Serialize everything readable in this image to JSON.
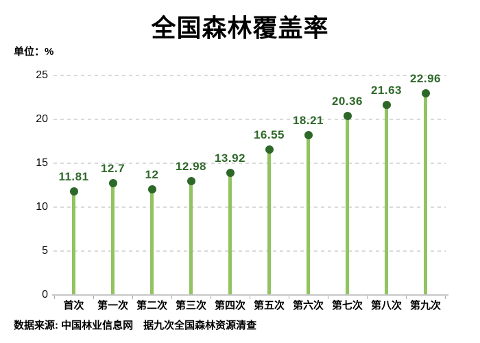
{
  "chart_data": {
    "type": "lollipop",
    "title": "全国森林覆盖率",
    "unit_label": "单位：%",
    "categories": [
      "首次",
      "第一次",
      "第二次",
      "第三次",
      "第四次",
      "第五次",
      "第六次",
      "第七次",
      "第八次",
      "第九次"
    ],
    "values": [
      11.81,
      12.7,
      12,
      12.98,
      13.92,
      16.55,
      18.21,
      20.36,
      21.63,
      22.96
    ],
    "ylabel": "",
    "xlabel": "",
    "ylim": [
      0,
      25
    ],
    "yticks": [
      0,
      5,
      10,
      15,
      20,
      25
    ],
    "ytick_interval": 5,
    "grid": "horizontal-dashed",
    "legend": "none",
    "source_note": "数据来源: 中国林业信息网　据九次全国森林资源清查",
    "colors": {
      "stem": "#92c361",
      "dot": "#2d6828",
      "value_label": "#2d6828",
      "grid": "#d9d9d9",
      "axis": "#c6c6c6",
      "tick": "#adadad",
      "text": "#000000"
    }
  }
}
